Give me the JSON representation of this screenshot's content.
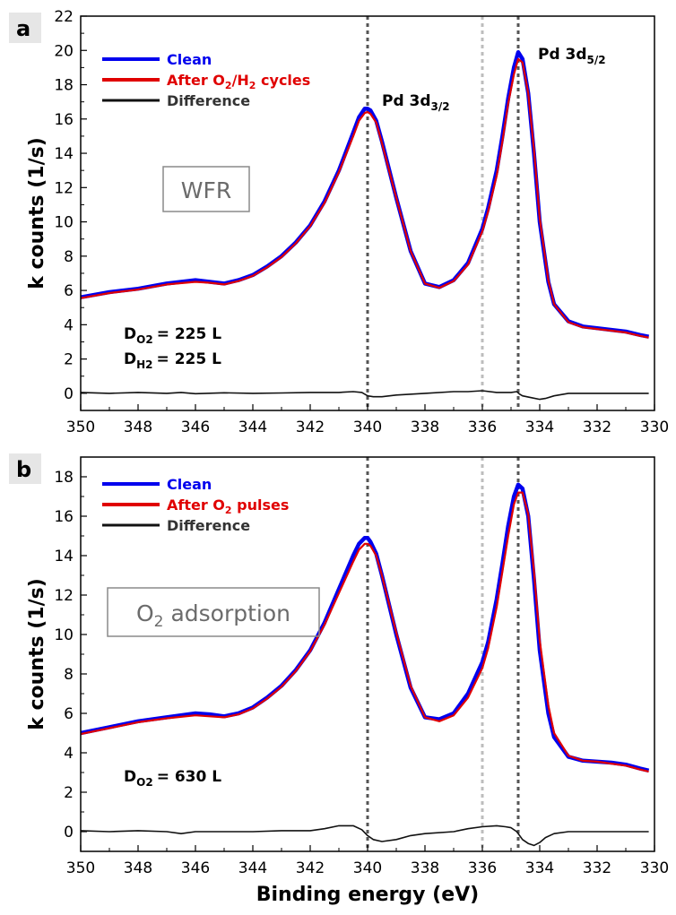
{
  "x_axis_title": "Binding energy (eV)",
  "colors": {
    "clean": "#0000ee",
    "after": "#e00000",
    "difference": "#111111",
    "vline_dark": "#555555",
    "vline_light": "#bdbdbd"
  },
  "chart_data": [
    {
      "panel": "a",
      "type": "line",
      "ylabel": "k counts (1/s)",
      "xlim": [
        350,
        330
      ],
      "ylim": [
        -1,
        22
      ],
      "x_ticks": [
        "350",
        "348",
        "346",
        "344",
        "342",
        "340",
        "338",
        "336",
        "334",
        "332",
        "330"
      ],
      "y_ticks": [
        "0",
        "2",
        "4",
        "6",
        "8",
        "10",
        "12",
        "14",
        "16",
        "18",
        "20",
        "22"
      ],
      "x_tick_values": [
        350,
        348,
        346,
        344,
        342,
        340,
        338,
        336,
        334,
        332,
        330
      ],
      "y_tick_values": [
        0,
        2,
        4,
        6,
        8,
        10,
        12,
        14,
        16,
        18,
        20,
        22
      ],
      "legend": [
        "Clean",
        "After O2/H2 cycles",
        "Difference"
      ],
      "box_label": "WFR",
      "peak_labels": [
        {
          "main": "Pd 3d",
          "sub": "3/2"
        },
        {
          "main": "Pd 3d",
          "sub": "5/2"
        }
      ],
      "doses": [
        {
          "label": "D",
          "sub": "O2",
          "value": "=  225 L"
        },
        {
          "label": "D",
          "sub": "H2",
          "value": "=  225 L"
        }
      ],
      "vlines": [
        340.0,
        336.0,
        334.75
      ],
      "series": [
        {
          "name": "Clean",
          "x": [
            350,
            349,
            348,
            347,
            346,
            345.5,
            345,
            344.5,
            344,
            343.5,
            343,
            342.5,
            342,
            341.5,
            341,
            340.5,
            340.3,
            340.1,
            340,
            339.9,
            339.7,
            339.5,
            339,
            338.5,
            338,
            337.5,
            337,
            336.5,
            336,
            335.8,
            335.5,
            335.3,
            335.1,
            334.9,
            334.75,
            334.6,
            334.4,
            334.2,
            334,
            333.7,
            333.5,
            333,
            332.5,
            332,
            331.5,
            331,
            330.5,
            330.2
          ],
          "y": [
            5.6,
            5.9,
            6.1,
            6.4,
            6.6,
            6.5,
            6.4,
            6.6,
            6.9,
            7.4,
            8.0,
            8.8,
            9.8,
            11.2,
            13.0,
            15.2,
            16.1,
            16.6,
            16.6,
            16.5,
            15.9,
            14.7,
            11.4,
            8.3,
            6.4,
            6.2,
            6.6,
            7.6,
            9.6,
            10.8,
            13.0,
            15.0,
            17.2,
            19.0,
            19.9,
            19.5,
            17.5,
            14.0,
            10.0,
            6.5,
            5.2,
            4.2,
            3.9,
            3.8,
            3.7,
            3.6,
            3.4,
            3.3
          ]
        },
        {
          "name": "After O2/H2 cycles",
          "x": [
            350,
            349,
            348,
            347,
            346,
            345.5,
            345,
            344.5,
            344,
            343.5,
            343,
            342.5,
            342,
            341.5,
            341,
            340.5,
            340.3,
            340.1,
            340,
            339.9,
            339.7,
            339.5,
            339,
            338.5,
            338,
            337.5,
            337,
            336.5,
            336,
            335.8,
            335.5,
            335.3,
            335.1,
            334.9,
            334.75,
            334.6,
            334.4,
            334.2,
            334,
            333.7,
            333.5,
            333,
            332.5,
            332,
            331.5,
            331,
            330.5,
            330.2
          ],
          "y": [
            5.55,
            5.85,
            6.05,
            6.35,
            6.5,
            6.45,
            6.35,
            6.55,
            6.85,
            7.35,
            7.95,
            8.75,
            9.75,
            11.1,
            12.9,
            15.0,
            15.9,
            16.35,
            16.4,
            16.3,
            15.8,
            14.6,
            11.4,
            8.3,
            6.4,
            6.15,
            6.55,
            7.5,
            9.45,
            10.6,
            12.7,
            14.7,
            16.9,
            18.6,
            19.5,
            19.3,
            17.5,
            14.2,
            10.2,
            6.6,
            5.2,
            4.15,
            3.85,
            3.75,
            3.65,
            3.55,
            3.35,
            3.25
          ]
        },
        {
          "name": "Difference",
          "x": [
            350,
            349,
            348,
            347,
            346.5,
            346,
            345,
            344,
            343,
            342,
            341,
            340.5,
            340.2,
            340,
            339.8,
            339.5,
            339,
            338,
            337,
            336.5,
            336,
            335.5,
            335,
            334.8,
            334.7,
            334.6,
            334.3,
            334.0,
            333.8,
            333.5,
            333,
            332,
            331,
            330.2
          ],
          "y": [
            0.05,
            0.0,
            0.05,
            0.0,
            0.05,
            -0.02,
            0.03,
            0.0,
            0.02,
            0.05,
            0.05,
            0.1,
            0.05,
            -0.15,
            -0.2,
            -0.2,
            -0.1,
            0.0,
            0.1,
            0.1,
            0.15,
            0.05,
            0.05,
            0.1,
            -0.05,
            -0.15,
            -0.25,
            -0.35,
            -0.3,
            -0.15,
            0.0,
            0.0,
            0.0,
            0.0
          ]
        }
      ]
    },
    {
      "panel": "b",
      "type": "line",
      "ylabel": "k counts (1/s)",
      "xlim": [
        350,
        330
      ],
      "ylim": [
        -1,
        19
      ],
      "x_ticks": [
        "350",
        "348",
        "346",
        "344",
        "342",
        "340",
        "338",
        "336",
        "334",
        "332",
        "330"
      ],
      "y_ticks": [
        "0",
        "2",
        "4",
        "6",
        "8",
        "10",
        "12",
        "14",
        "16",
        "18"
      ],
      "x_tick_values": [
        350,
        348,
        346,
        344,
        342,
        340,
        338,
        336,
        334,
        332,
        330
      ],
      "y_tick_values": [
        0,
        2,
        4,
        6,
        8,
        10,
        12,
        14,
        16,
        18
      ],
      "legend": [
        "Clean",
        "After O2 pulses",
        "Difference"
      ],
      "box_label": "O2 adsorption",
      "doses": [
        {
          "label": "D",
          "sub": "O2",
          "value": "=  630 L"
        }
      ],
      "vlines": [
        340.0,
        336.0,
        334.75
      ],
      "series": [
        {
          "name": "Clean",
          "x": [
            350,
            349,
            348,
            347,
            346,
            345.5,
            345,
            344.5,
            344,
            343.5,
            343,
            342.5,
            342,
            341.5,
            341,
            340.5,
            340.3,
            340.1,
            340,
            339.9,
            339.7,
            339.5,
            339,
            338.5,
            338,
            337.5,
            337,
            336.5,
            336,
            335.8,
            335.5,
            335.3,
            335.1,
            334.9,
            334.75,
            334.6,
            334.4,
            334.2,
            334,
            333.7,
            333.5,
            333,
            332.5,
            332,
            331.5,
            331,
            330.5,
            330.2
          ],
          "y": [
            5.0,
            5.3,
            5.6,
            5.8,
            6.0,
            5.95,
            5.85,
            6.0,
            6.3,
            6.8,
            7.4,
            8.2,
            9.2,
            10.6,
            12.3,
            14.0,
            14.6,
            14.9,
            14.9,
            14.7,
            14.1,
            13.0,
            10.0,
            7.3,
            5.8,
            5.7,
            6.0,
            7.0,
            8.6,
            9.6,
            11.8,
            13.6,
            15.5,
            17.0,
            17.6,
            17.4,
            16.0,
            12.8,
            9.2,
            6.0,
            4.8,
            3.8,
            3.6,
            3.55,
            3.5,
            3.4,
            3.2,
            3.1
          ]
        },
        {
          "name": "After O2 pulses",
          "x": [
            350,
            349,
            348,
            347,
            346,
            345.5,
            345,
            344.5,
            344,
            343.5,
            343,
            342.5,
            342,
            341.5,
            341,
            340.5,
            340.3,
            340.1,
            340,
            339.9,
            339.7,
            339.5,
            339,
            338.5,
            338,
            337.5,
            337,
            336.5,
            336,
            335.8,
            335.5,
            335.3,
            335.1,
            334.9,
            334.75,
            334.6,
            334.4,
            334.2,
            334,
            333.7,
            333.5,
            333,
            332.5,
            332,
            331.5,
            331,
            330.5,
            330.2
          ],
          "y": [
            4.95,
            5.25,
            5.55,
            5.75,
            5.9,
            5.85,
            5.8,
            5.95,
            6.25,
            6.75,
            7.35,
            8.15,
            9.15,
            10.5,
            12.1,
            13.7,
            14.3,
            14.6,
            14.6,
            14.5,
            14.0,
            13.0,
            10.1,
            7.4,
            5.8,
            5.6,
            5.9,
            6.8,
            8.3,
            9.3,
            11.4,
            13.2,
            15.0,
            16.6,
            17.2,
            17.2,
            16.1,
            13.2,
            9.7,
            6.4,
            5.0,
            3.85,
            3.6,
            3.55,
            3.45,
            3.35,
            3.15,
            3.05
          ]
        },
        {
          "name": "Difference",
          "x": [
            350,
            349,
            348,
            347,
            346.5,
            346,
            345,
            344,
            343,
            342,
            341.5,
            341,
            340.5,
            340.2,
            340,
            339.8,
            339.5,
            339,
            338.5,
            338,
            337,
            336.5,
            336,
            335.5,
            335.2,
            335,
            334.8,
            334.6,
            334.4,
            334.2,
            334,
            333.8,
            333.5,
            333,
            332,
            331,
            330.2
          ],
          "y": [
            0.05,
            0.0,
            0.05,
            0.0,
            -0.1,
            0.0,
            0.0,
            0.0,
            0.05,
            0.05,
            0.15,
            0.3,
            0.3,
            0.1,
            -0.2,
            -0.4,
            -0.5,
            -0.4,
            -0.2,
            -0.1,
            0.0,
            0.15,
            0.25,
            0.3,
            0.25,
            0.2,
            0.0,
            -0.4,
            -0.6,
            -0.7,
            -0.55,
            -0.3,
            -0.1,
            0.0,
            0.0,
            0.0,
            0.0
          ]
        }
      ]
    }
  ]
}
